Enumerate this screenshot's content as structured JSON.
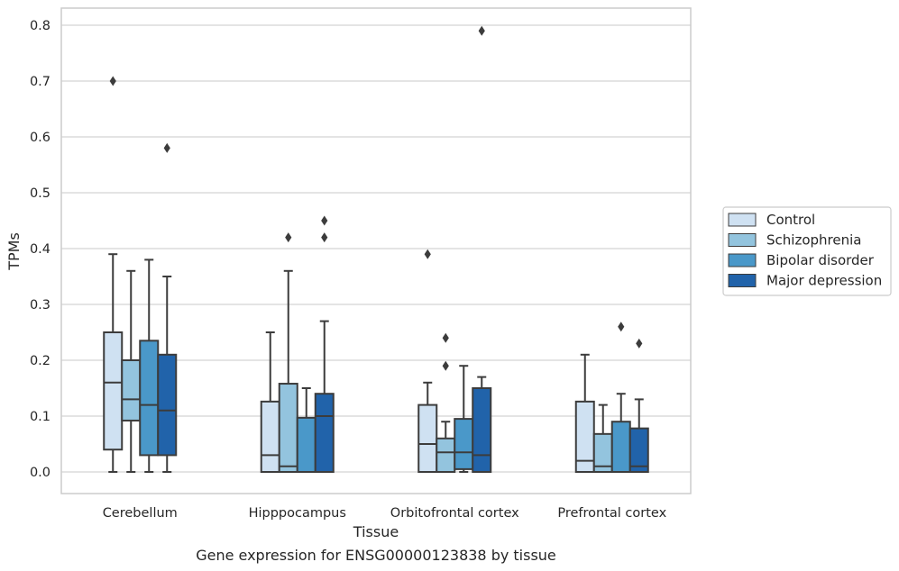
{
  "caption": "Gene expression for ENSG00000123838 by tissue",
  "chart_data": {
    "type": "box",
    "xlabel": "Tissue",
    "ylabel": "TPMs",
    "ylim": [
      -0.04,
      0.83
    ],
    "yticks": [
      "0.0",
      "0.1",
      "0.2",
      "0.3",
      "0.4",
      "0.5",
      "0.6",
      "0.7",
      "0.8"
    ],
    "grid": "horizontal",
    "legend_position": "right",
    "categories": [
      "Cerebellum",
      "Hipppocampus",
      "Orbitofrontal cortex",
      "Prefrontal cortex"
    ],
    "series": [
      {
        "name": "Control",
        "color": "#cfe1f2",
        "boxes": [
          {
            "whislo": 0.0,
            "q1": 0.04,
            "med": 0.16,
            "q3": 0.25,
            "whishi": 0.39,
            "fliers": [
              0.7
            ]
          },
          {
            "whislo": 0.0,
            "q1": 0.0,
            "med": 0.03,
            "q3": 0.126,
            "whishi": 0.25,
            "fliers": []
          },
          {
            "whislo": 0.0,
            "q1": 0.0,
            "med": 0.05,
            "q3": 0.12,
            "whishi": 0.16,
            "fliers": [
              0.39
            ]
          },
          {
            "whislo": 0.0,
            "q1": 0.0,
            "med": 0.02,
            "q3": 0.126,
            "whishi": 0.21,
            "fliers": []
          }
        ]
      },
      {
        "name": "Schizophrenia",
        "color": "#93c4de",
        "boxes": [
          {
            "whislo": 0.0,
            "q1": 0.092,
            "med": 0.13,
            "q3": 0.2,
            "whishi": 0.36,
            "fliers": []
          },
          {
            "whislo": 0.0,
            "q1": 0.0,
            "med": 0.01,
            "q3": 0.158,
            "whishi": 0.36,
            "fliers": [
              0.42
            ]
          },
          {
            "whislo": 0.0,
            "q1": 0.0,
            "med": 0.035,
            "q3": 0.06,
            "whishi": 0.09,
            "fliers": [
              0.19,
              0.24
            ]
          },
          {
            "whislo": 0.0,
            "q1": 0.0,
            "med": 0.01,
            "q3": 0.068,
            "whishi": 0.12,
            "fliers": []
          }
        ]
      },
      {
        "name": "Bipolar disorder",
        "color": "#4a98c9",
        "boxes": [
          {
            "whislo": 0.0,
            "q1": 0.03,
            "med": 0.12,
            "q3": 0.235,
            "whishi": 0.38,
            "fliers": []
          },
          {
            "whislo": 0.0,
            "q1": 0.0,
            "med": 0.0,
            "q3": 0.097,
            "whishi": 0.15,
            "fliers": []
          },
          {
            "whislo": 0.0,
            "q1": 0.005,
            "med": 0.035,
            "q3": 0.095,
            "whishi": 0.19,
            "fliers": []
          },
          {
            "whislo": 0.0,
            "q1": 0.0,
            "med": 0.0,
            "q3": 0.09,
            "whishi": 0.14,
            "fliers": [
              0.26
            ]
          }
        ]
      },
      {
        "name": "Major depression",
        "color": "#2163aa",
        "boxes": [
          {
            "whislo": 0.0,
            "q1": 0.03,
            "med": 0.11,
            "q3": 0.21,
            "whishi": 0.35,
            "fliers": [
              0.58
            ]
          },
          {
            "whislo": 0.0,
            "q1": 0.0,
            "med": 0.1,
            "q3": 0.14,
            "whishi": 0.27,
            "fliers": [
              0.42,
              0.45
            ]
          },
          {
            "whislo": 0.0,
            "q1": 0.0,
            "med": 0.03,
            "q3": 0.15,
            "whishi": 0.17,
            "fliers": [
              0.79
            ]
          },
          {
            "whislo": 0.0,
            "q1": 0.0,
            "med": 0.01,
            "q3": 0.078,
            "whishi": 0.13,
            "fliers": [
              0.23
            ]
          }
        ]
      }
    ]
  }
}
